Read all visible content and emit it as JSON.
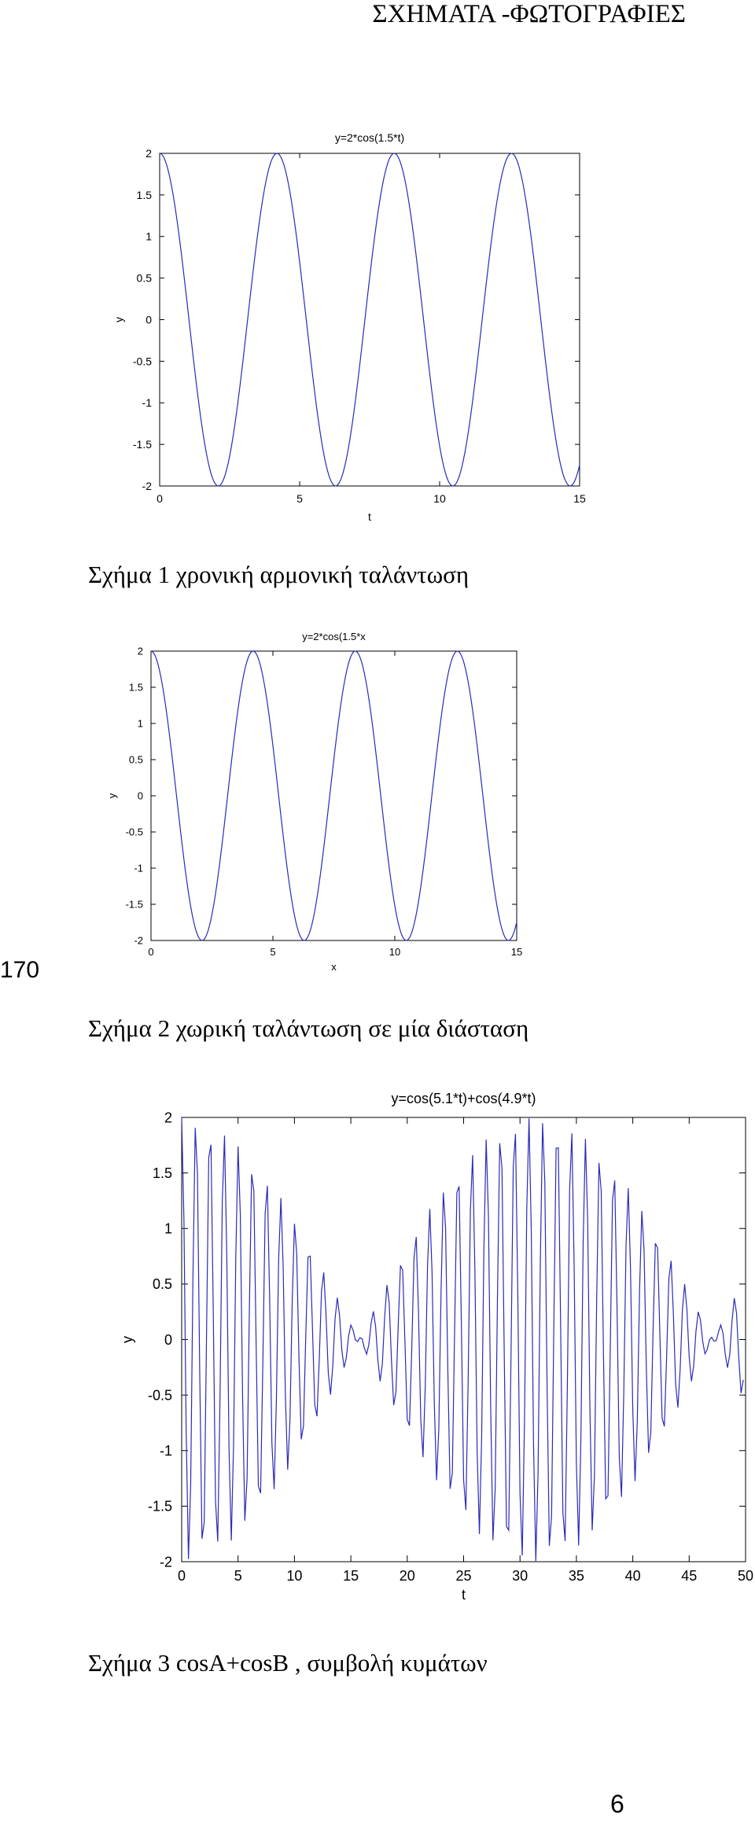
{
  "header": {
    "title": "ΣΧΗΜΑΤΑ -ΦΩΤΟΓΡΑΦΙΕΣ"
  },
  "side_page_number": "170",
  "captions": {
    "fig1": "Σχήμα 1 χρονική αρμονική ταλάντωση",
    "fig2": "Σχήμα 2 χωρική ταλάντωση σε μία διάσταση",
    "fig3": "Σχήμα 3 cosA+cosB , συμβολή κυμάτων"
  },
  "page_number": "6",
  "colors": {
    "line": "#2b2bb8",
    "axes": "#000000"
  },
  "chart_data": [
    {
      "type": "line",
      "title": "y=2*cos(1.5*t)",
      "xlabel": "t",
      "ylabel": "y",
      "xlim": [
        0,
        15
      ],
      "ylim": [
        -2,
        2
      ],
      "xticks": [
        0,
        5,
        10,
        15
      ],
      "yticks": [
        2,
        1.5,
        1,
        0.5,
        0,
        -0.5,
        -1,
        -1.5,
        -2
      ],
      "grid": false,
      "series": [
        {
          "amplitude": 2,
          "omega": 1.5,
          "t_start": 0,
          "t_end": 15,
          "step": 0.05
        }
      ]
    },
    {
      "type": "line",
      "title": "y=2*cos(1.5*x",
      "xlabel": "x",
      "ylabel": "y",
      "xlim": [
        0,
        15
      ],
      "ylim": [
        -2,
        2
      ],
      "xticks": [
        0,
        5,
        10,
        15
      ],
      "yticks": [
        2,
        1.5,
        1,
        0.5,
        0,
        -0.5,
        -1,
        -1.5,
        -2
      ],
      "grid": false,
      "series": [
        {
          "amplitude": 2,
          "omega": 1.5,
          "t_start": 0,
          "t_end": 15,
          "step": 0.05
        }
      ]
    },
    {
      "type": "line",
      "title": "y=cos(5.1*t)+cos(4.9*t)",
      "xlabel": "t",
      "ylabel": "y",
      "xlim": [
        0,
        50
      ],
      "ylim": [
        -2,
        2
      ],
      "xticks": [
        0,
        5,
        10,
        15,
        20,
        25,
        30,
        35,
        40,
        45,
        50
      ],
      "yticks": [
        2,
        1.5,
        1,
        0.5,
        0,
        -0.5,
        -1,
        -1.5,
        -2
      ],
      "grid": false,
      "series": [
        {
          "omega1": 5.1,
          "omega2": 4.9,
          "t_start": 0,
          "t_end": 49.8,
          "step": 0.2
        }
      ]
    }
  ]
}
